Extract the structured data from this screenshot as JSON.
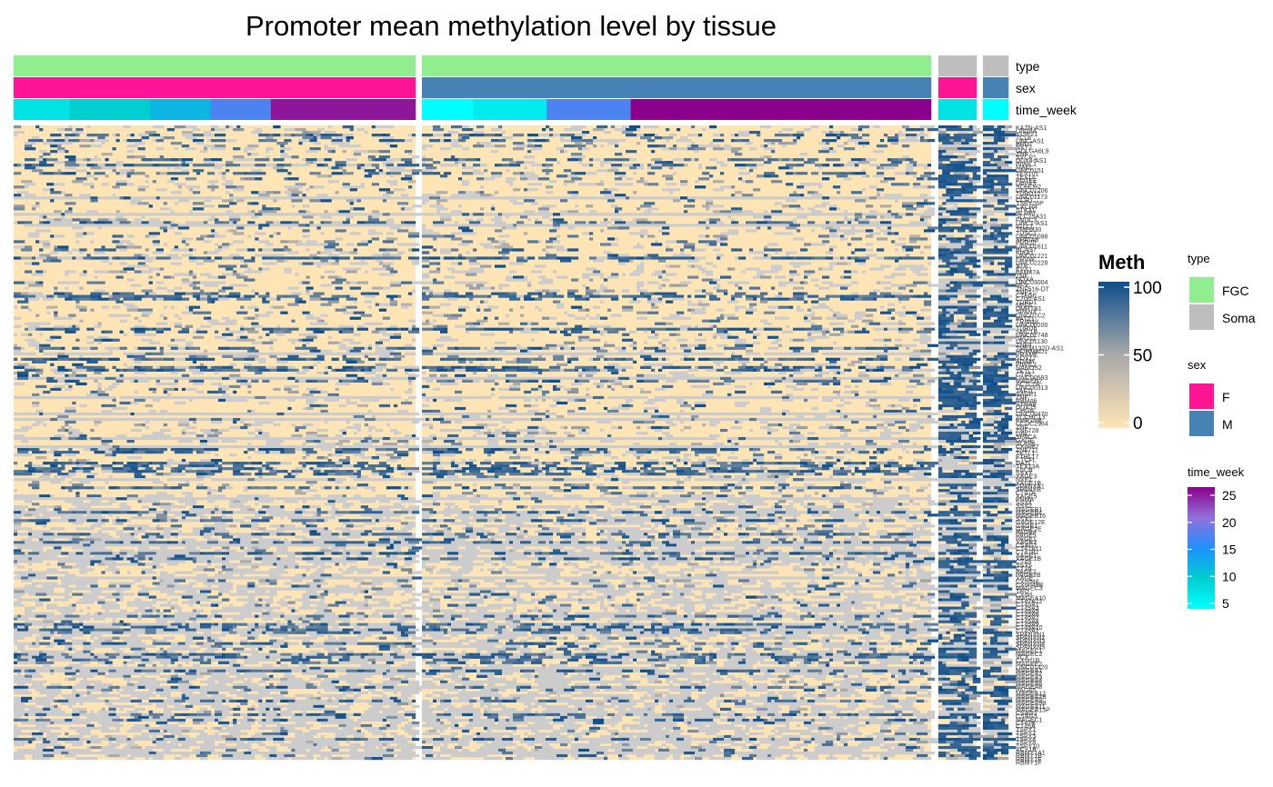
{
  "chart_data": {
    "type": "heatmap",
    "title": "Promoter mean methylation level by tissue",
    "value_range": [
      0,
      100
    ],
    "na_color": "#cccccc",
    "color_scale": {
      "0": "#ffe4b5",
      "50": "#a9a9a9",
      "100": "#0d4e8b"
    },
    "annotations": [
      {
        "name": "type",
        "segments": [
          {
            "panel": 0,
            "value": "FGC"
          },
          {
            "panel": 1,
            "value": "FGC"
          },
          {
            "panel": 2,
            "value": "Soma"
          },
          {
            "panel": 3,
            "value": "Soma"
          }
        ]
      },
      {
        "name": "sex",
        "segments": [
          {
            "panel": 0,
            "value": "F"
          },
          {
            "panel": 1,
            "value": "M"
          },
          {
            "panel": 2,
            "value": "F"
          },
          {
            "panel": 3,
            "value": "M"
          }
        ]
      },
      {
        "name": "time_week",
        "segments": [
          {
            "panel": 0,
            "from": 0.0,
            "to": 0.14,
            "value": 8
          },
          {
            "panel": 0,
            "from": 0.14,
            "to": 0.34,
            "value": 10
          },
          {
            "panel": 0,
            "from": 0.34,
            "to": 0.49,
            "value": 12
          },
          {
            "panel": 0,
            "from": 0.49,
            "to": 0.64,
            "value": 17
          },
          {
            "panel": 0,
            "from": 0.64,
            "to": 1.0,
            "value": 24
          },
          {
            "panel": 1,
            "from": 0.0,
            "to": 0.1,
            "value": 5
          },
          {
            "panel": 1,
            "from": 0.1,
            "to": 0.245,
            "value": 7
          },
          {
            "panel": 1,
            "from": 0.245,
            "to": 0.41,
            "value": 17
          },
          {
            "panel": 1,
            "from": 0.41,
            "to": 1.0,
            "value": 25
          },
          {
            "panel": 2,
            "from": 0.0,
            "to": 1.0,
            "value": 8
          },
          {
            "panel": 3,
            "from": 0.0,
            "to": 1.0,
            "value": 5
          }
        ]
      }
    ],
    "panels": [
      {
        "group": "FGC female",
        "columns": 110
      },
      {
        "group": "FGC male",
        "columns": 140
      },
      {
        "group": "Soma female",
        "columns": 10
      },
      {
        "group": "Soma male",
        "columns": 7
      }
    ],
    "genes": [
      "KAZN-AS1",
      "LIN28A",
      "IGSF21",
      "TCL6",
      "LINC-AS1",
      "BRDT",
      "NXT2",
      "GOLGA6L9",
      "ZNF",
      "SYCP1",
      "DDX4-AS1",
      "PIWIL1",
      "MAEL",
      "LINC0151",
      "TEX101",
      "TEX14",
      "POTEE",
      "DPPA3",
      "SOHLH2",
      "LINC01206",
      "TDRD12",
      "LINC01173",
      "CCR1",
      "TSPY26P",
      "CXCR4",
      "STK31",
      "NLRP7",
      "SLC25A31",
      "FNDC3",
      "LINC1-AS1",
      "IGLL1",
      "TMEM30",
      "TUSC1",
      "LINC01098",
      "SPATA8",
      "PRR20",
      "LINC01611",
      "BCAS7",
      "KIAA1",
      "LINC01221",
      "ERVW",
      "LINC02228",
      "STK",
      "EVX1",
      "FAM47A",
      "ZNF",
      "NOXA",
      "LINC03004",
      "RFX",
      "ZNF516-DT",
      "TNP1",
      "CTAGE",
      "C7orf-AS1",
      "TDRD1",
      "NPFF",
      "DMRTB1",
      "SPANX",
      "LINC01C2",
      "PATZ1",
      "TRIM48",
      "LINC00200",
      "TDRD6",
      "SMC1B",
      "LINC01748",
      "SPO11",
      "LINC01130",
      "ZNF4",
      "TMEM132D-AS1",
      "HORMAD1",
      "PRAME",
      "SOX17",
      "ADAM",
      "PIWIL2",
      "NANOS2",
      "TKTL1",
      "CT45",
      "LINC00593",
      "MAGEB2",
      "ACTL7A",
      "LINC00313",
      "TAF7L",
      "SAGE1",
      "ZNF",
      "RBM46",
      "STRA8",
      "DDX25",
      "CHGA",
      "LINC00470",
      "ZCCHC13",
      "FMR1NB",
      "CCDC2964",
      "ZNF",
      "ZNF728",
      "LINC",
      "SPACA",
      "GAGE",
      "SLAP6",
      "CXorf67",
      "ZNF711",
      "TKTL1",
      "FTHL17",
      "CTCFL",
      "DAZL",
      "TEX13A",
      "FSCB",
      "SSX7",
      "XAGE3",
      "NXF2",
      "XAGE1B",
      "SPANXA1",
      "SPANXB",
      "CT47A",
      "XAGE5",
      "PNMA",
      "SSX4",
      "SSX2",
      "MAGEB1",
      "MAGEB4",
      "MAGEB16",
      "SSX1",
      "GAGE12E",
      "GAGE1",
      "GAGE2E",
      "PAGE4",
      "PAGE5",
      "PAGE1",
      "XAGE2",
      "CSAG1",
      "CT47A11",
      "CT47B1",
      "XAGE1",
      "XAGE1B",
      "CT45",
      "SSX5",
      "CT16",
      "PAGE2",
      "PAGE2B",
      "XAGE",
      "CXorf48",
      "CXorf49B",
      "MAGEC3",
      "TRO",
      "CXorf",
      "MAGEA10",
      "CT47A12",
      "CT45A1",
      "CT45A3",
      "CT45A5",
      "CT45A6",
      "CT45A7",
      "CT45A8",
      "CT45A9",
      "CT45A10",
      "CT45A2",
      "SPANXN1",
      "SPANXN2",
      "SPANXN3",
      "SPANXN4",
      "SPANXN5",
      "MAGEC1",
      "MAGEC2",
      "VCX",
      "CXorf1B",
      "MAGEE2",
      "LINC01420",
      "MAGEA1",
      "MAGEA2",
      "MAGEA3",
      "MAGEA4",
      "MAGEA6",
      "MAGEA8",
      "PAGE5",
      "MAGEA12",
      "MAGEA2B",
      "MAGEA9",
      "MAGEA9B",
      "MAGEA11",
      "MAGEA13P",
      "CSAG2",
      "CSAG3",
      "MAGEC1",
      "CT47B",
      "CT45A",
      "TSPY1",
      "TSPY2",
      "TSPY3",
      "TSPY4",
      "TSPY8",
      "TSPY10",
      "VCY1B",
      "RBMY1A1",
      "RBMY1B",
      "RBMY1E",
      "RBMY1F"
    ],
    "legend": {
      "title": "Meth",
      "ticks": [
        0,
        50,
        100
      ],
      "type": {
        "title": "type",
        "entries": [
          {
            "label": "FGC",
            "color": "#90ee90"
          },
          {
            "label": "Soma",
            "color": "#bebebe"
          }
        ]
      },
      "sex": {
        "title": "sex",
        "entries": [
          {
            "label": "F",
            "color": "#ff1493"
          },
          {
            "label": "M",
            "color": "#4682b4"
          }
        ]
      },
      "time_week": {
        "title": "time_week",
        "ticks": [
          5,
          10,
          15,
          20,
          25
        ],
        "colors": [
          "#00ffff",
          "#00ced1",
          "#1e90ff",
          "#9370db",
          "#8b008b"
        ]
      }
    }
  }
}
